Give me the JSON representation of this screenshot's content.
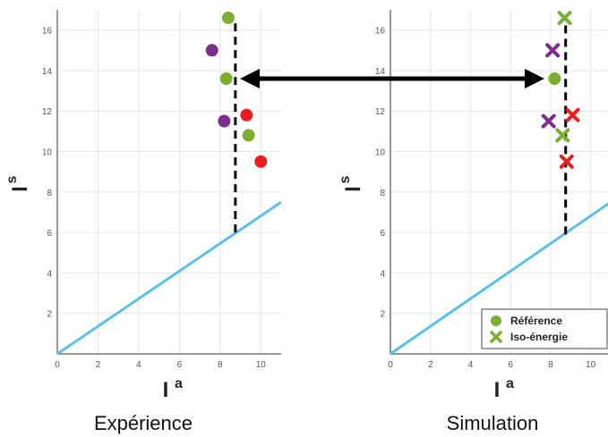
{
  "colors": {
    "green": "#7cae2f",
    "purple": "#7b2f8c",
    "red": "#ee1c1c",
    "line": "#5bc0e8",
    "black": "#000000"
  },
  "chart_data": [
    {
      "type": "scatter",
      "caption": "Expérience",
      "xlabel": "I",
      "xlabel_sup": "a",
      "ylabel": "I",
      "ylabel_sup": "s",
      "xlim": [
        0,
        11
      ],
      "ylim": [
        0,
        17
      ],
      "xticks": [
        0,
        2,
        4,
        6,
        8,
        10
      ],
      "yticks": [
        2,
        4,
        6,
        8,
        10,
        12,
        14,
        16
      ],
      "grid": true,
      "marker": "circle",
      "series": [
        {
          "color_key": "green",
          "x": [
            8.4,
            8.3,
            9.4
          ],
          "y": [
            16.6,
            13.6,
            10.8
          ]
        },
        {
          "color_key": "purple",
          "x": [
            7.6,
            8.2
          ],
          "y": [
            15.0,
            11.5
          ]
        },
        {
          "color_key": "red",
          "x": [
            9.3,
            10.0
          ],
          "y": [
            11.8,
            9.5
          ]
        }
      ],
      "diagonal": {
        "x": [
          0,
          11
        ],
        "y": [
          0,
          7.5
        ]
      },
      "dashed_line": {
        "x": [
          8.75,
          8.75
        ],
        "y": [
          6.0,
          16.4
        ]
      }
    },
    {
      "type": "scatter",
      "caption": "Simulation",
      "xlabel": "I",
      "xlabel_sup": "a",
      "ylabel": "I",
      "ylabel_sup": "s",
      "xlim": [
        0,
        11
      ],
      "ylim": [
        0,
        17
      ],
      "xticks": [
        0,
        2,
        4,
        6,
        8,
        10
      ],
      "yticks": [
        2,
        4,
        6,
        8,
        10,
        12,
        14,
        16
      ],
      "grid": true,
      "legend_position": "bottom-right",
      "legend": [
        "Référence",
        "Iso-énergie"
      ],
      "reference": {
        "color_key": "green",
        "marker": "circle",
        "x": [
          8.2
        ],
        "y": [
          13.6
        ]
      },
      "series": [
        {
          "color_key": "green",
          "marker": "x",
          "x": [
            8.7,
            8.6
          ],
          "y": [
            16.6,
            10.8
          ]
        },
        {
          "color_key": "purple",
          "marker": "x",
          "x": [
            8.1,
            7.9
          ],
          "y": [
            15.0,
            11.5
          ]
        },
        {
          "color_key": "red",
          "marker": "x",
          "x": [
            9.1,
            8.8
          ],
          "y": [
            11.8,
            9.5
          ]
        }
      ],
      "diagonal": {
        "x": [
          0,
          11
        ],
        "y": [
          0,
          7.5
        ]
      },
      "dashed_line": {
        "x": [
          8.75,
          8.75
        ],
        "y": [
          5.9,
          16.4
        ]
      }
    }
  ],
  "arrow": {
    "between_panels": "double-headed",
    "y_value": 13.6
  }
}
